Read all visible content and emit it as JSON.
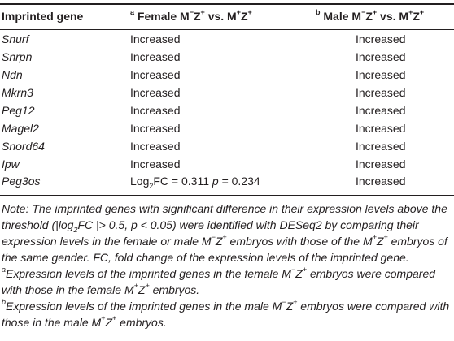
{
  "header": {
    "col1": "Imprinted gene",
    "col2_sup": "a",
    "col2_pre": " Female M",
    "col2_s1": "−",
    "col2_mid": "Z",
    "col2_s2": "+",
    "col2_post": " vs. M",
    "col2_s3": "+",
    "col2_z": "Z",
    "col2_s4": "+",
    "col3_sup": "b",
    "col3_pre": " Male M",
    "col3_s1": "−",
    "col3_mid": "Z",
    "col3_s2": "+",
    "col3_post": " vs. M",
    "col3_s3": "+",
    "col3_z": "Z",
    "col3_s4": "+"
  },
  "rows": [
    {
      "gene": "Snurf",
      "female": "Increased",
      "male": "Increased"
    },
    {
      "gene": "Snrpn",
      "female": "Increased",
      "male": "Increased"
    },
    {
      "gene": "Ndn",
      "female": "Increased",
      "male": "Increased"
    },
    {
      "gene": "Mkrn3",
      "female": "Increased",
      "male": "Increased"
    },
    {
      "gene": "Peg12",
      "female": "Increased",
      "male": "Increased"
    },
    {
      "gene": "Magel2",
      "female": "Increased",
      "male": "Increased"
    },
    {
      "gene": "Snord64",
      "female": "Increased",
      "male": "Increased"
    },
    {
      "gene": "Ipw",
      "female": "Increased",
      "male": "Increased"
    }
  ],
  "last_row": {
    "gene": "Peg3os",
    "female_log": "Log",
    "female_sub": "2",
    "female_fc": "FC = 0.311 ",
    "female_p": "p",
    "female_pval": " = 0.234",
    "male": "Increased"
  },
  "notes": {
    "main_1": "Note: The imprinted genes with significant difference in their expression levels above the threshold (|log",
    "main_sub": "2",
    "main_2": "FC |> 0.5, p < 0.05) were identified with DESeq2 by comparing their expression levels in the female or male M",
    "main_s1": "−",
    "main_3": "Z",
    "main_s2": "+",
    "main_4": " embryos with those of the M",
    "main_s3": "+",
    "main_5": "Z",
    "main_s4": "+",
    "main_6": " embryos of the same gender. FC, fold change of the expression levels of the imprinted gene.",
    "fa_sup": "a",
    "fa_1": "Expression levels of the imprinted genes in the female M",
    "fa_s1": "−",
    "fa_2": "Z",
    "fa_s2": "+",
    "fa_3": " embryos were compared with those in the female M",
    "fa_s3": "+",
    "fa_4": "Z",
    "fa_s4": "+",
    "fa_5": " embryos.",
    "fb_sup": "b",
    "fb_1": "Expression levels of the imprinted genes in the male M",
    "fb_s1": "−",
    "fb_2": "Z",
    "fb_s2": "+",
    "fb_3": " embryos were compared with those in the male M",
    "fb_s3": "+",
    "fb_4": "Z",
    "fb_s4": "+",
    "fb_5": " embryos."
  }
}
